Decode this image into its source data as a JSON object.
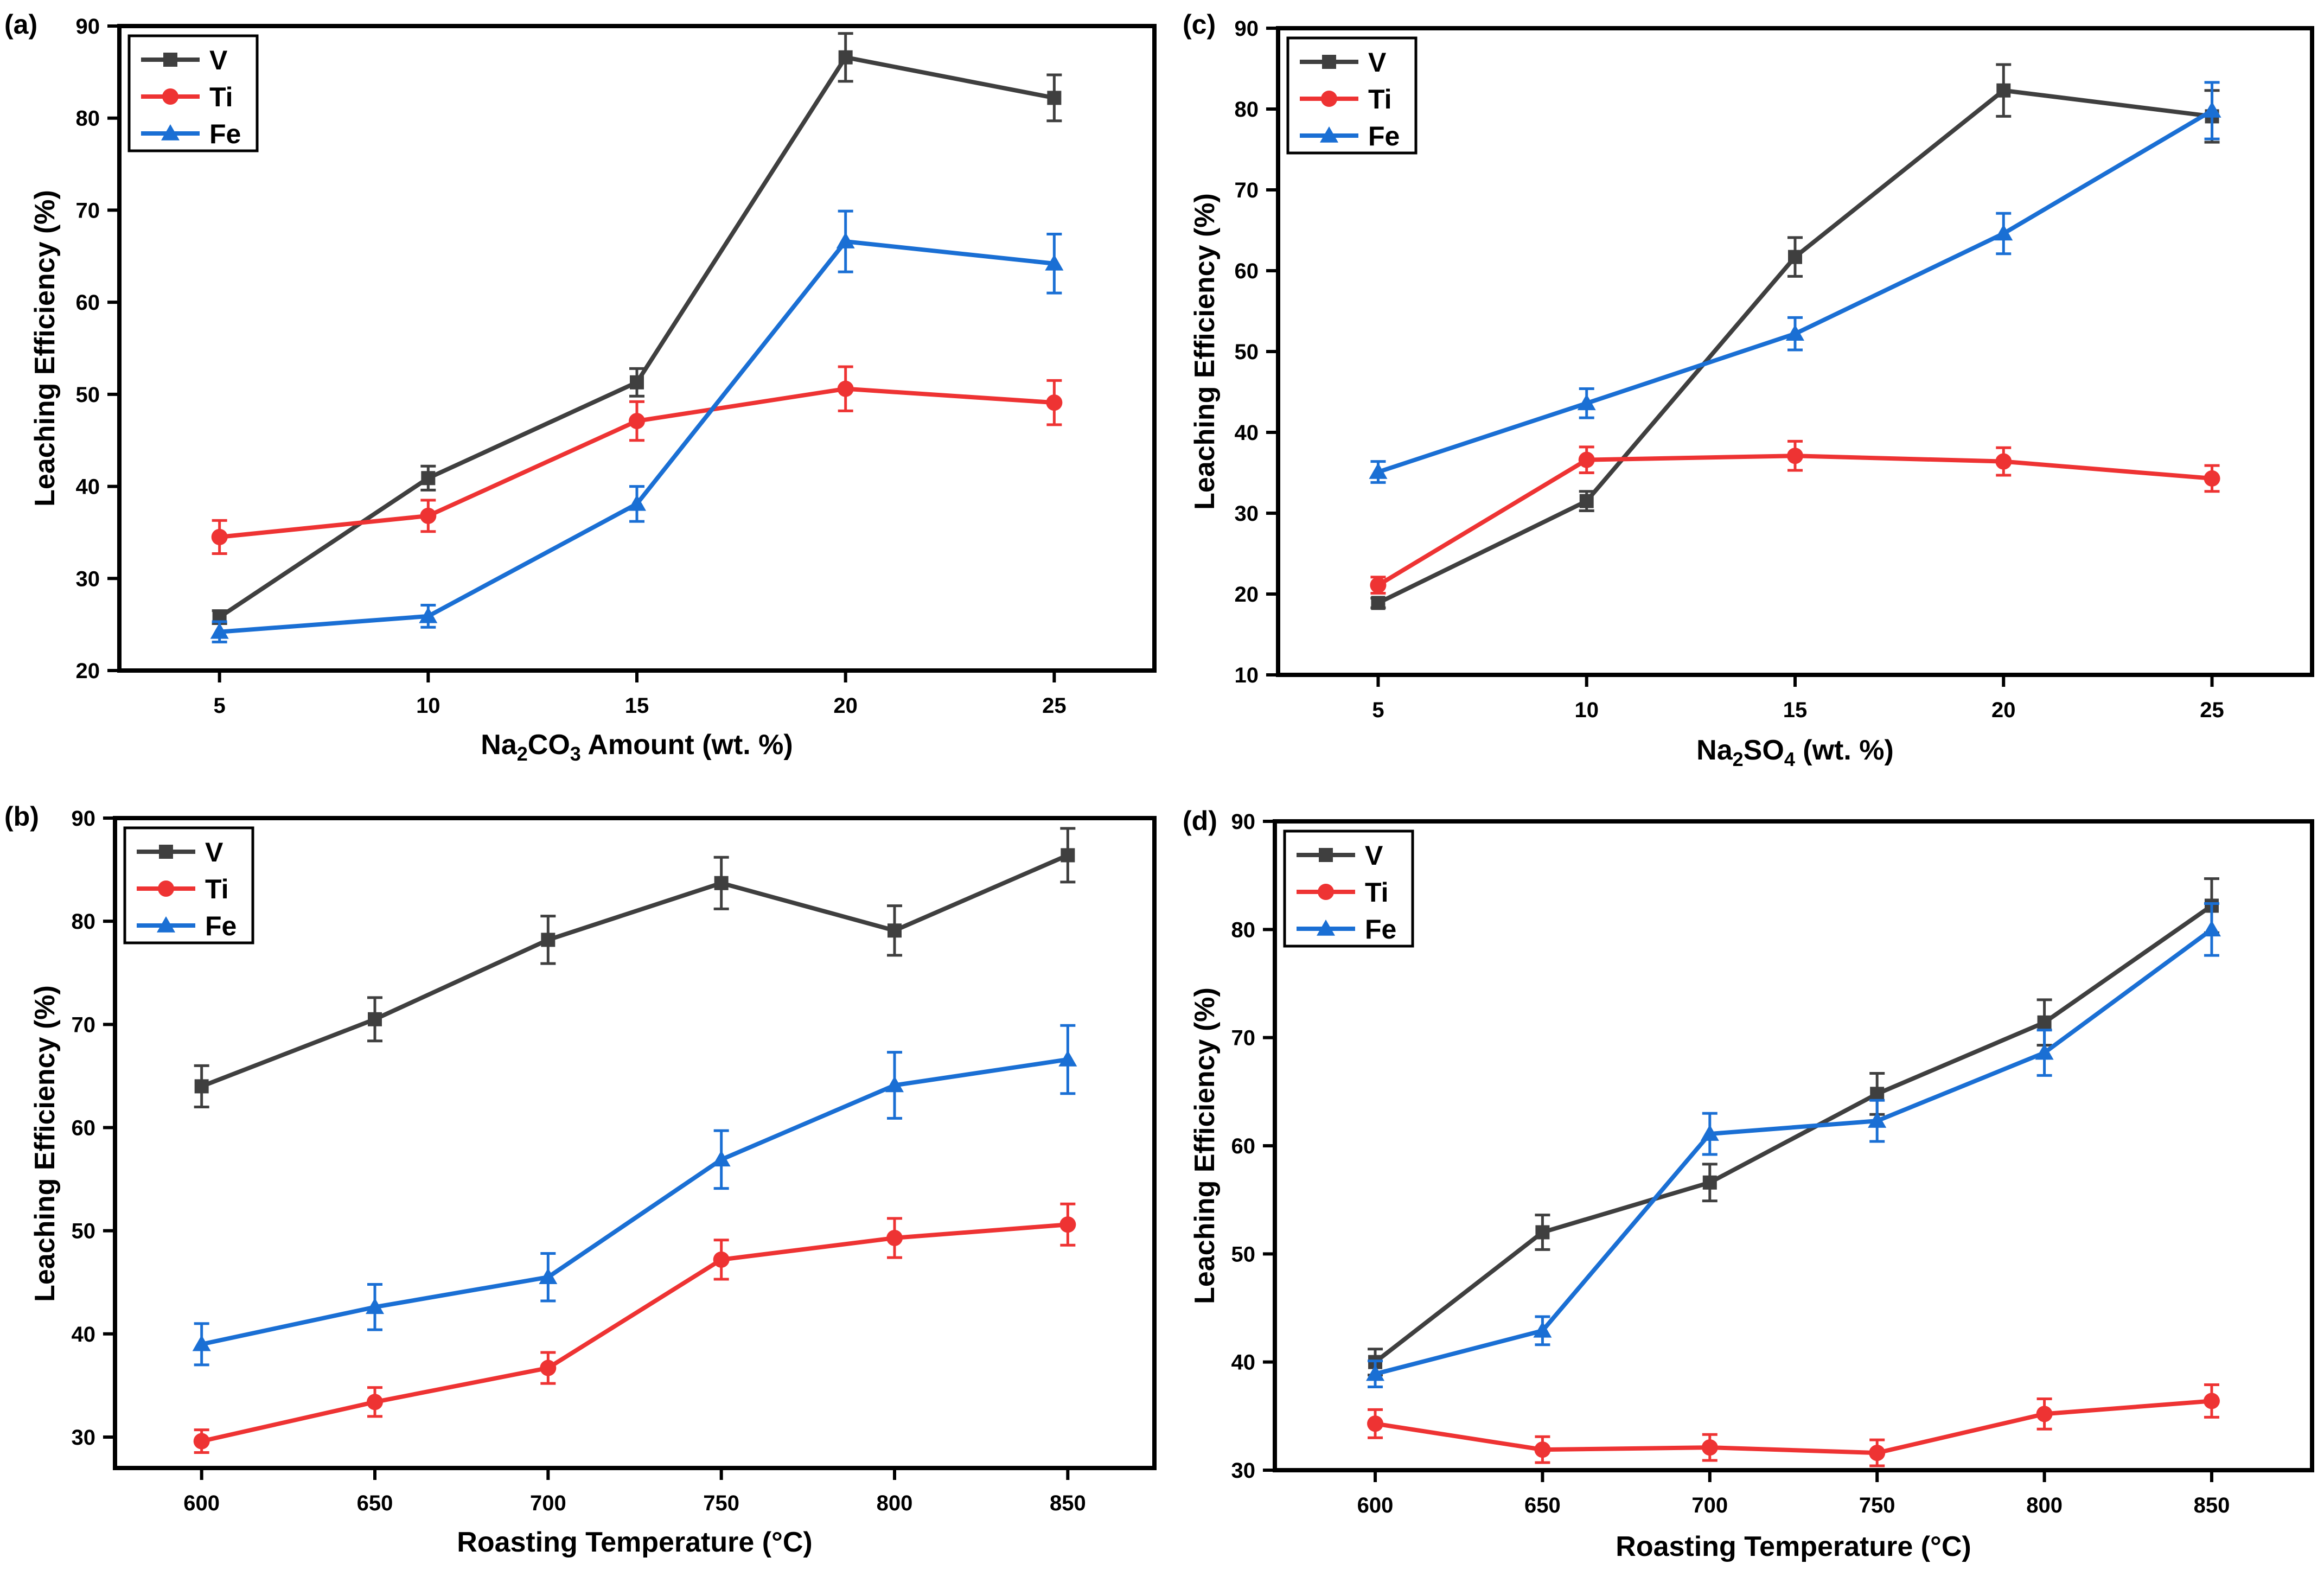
{
  "chart_data": [
    {
      "panel": "(a)",
      "type": "line",
      "xlabel_main": "Na",
      "xlabel_sub1": "2",
      "xlabel_mid": "CO",
      "xlabel_sub2": "3",
      "xlabel_tail": " Amount (wt. %)",
      "ylabel": "Leaching Efficiency (%)",
      "x": [
        5,
        10,
        15,
        20,
        25
      ],
      "xticks": [
        "5",
        "10",
        "15",
        "20",
        "25"
      ],
      "xlim": [
        2.6,
        27.4
      ],
      "yticks": [
        "20",
        "30",
        "40",
        "50",
        "60",
        "70",
        "80",
        "90"
      ],
      "ylim": [
        20,
        90
      ],
      "legend_position": "top-left",
      "series": [
        {
          "name": "V",
          "color": "#3f3f3f",
          "marker": "square",
          "values": [
            25.8,
            40.9,
            51.3,
            86.6,
            82.2
          ],
          "errors": [
            0.7,
            1.3,
            1.5,
            2.6,
            2.5
          ]
        },
        {
          "name": "Ti",
          "color": "#ee3333",
          "marker": "circle",
          "values": [
            34.5,
            36.8,
            47.1,
            50.6,
            49.1
          ],
          "errors": [
            1.8,
            1.7,
            2.1,
            2.4,
            2.4
          ]
        },
        {
          "name": "Fe",
          "color": "#1a6fd4",
          "marker": "triangle",
          "values": [
            24.2,
            25.9,
            38.1,
            66.6,
            64.2
          ],
          "errors": [
            1.1,
            1.2,
            1.9,
            3.3,
            3.2
          ]
        }
      ]
    },
    {
      "panel": "(c)",
      "type": "line",
      "xlabel_main": "Na",
      "xlabel_sub1": "2",
      "xlabel_mid": "SO",
      "xlabel_sub2": "4",
      "xlabel_tail": " (wt. %)",
      "ylabel": "Leaching Efficiency (%)",
      "x": [
        5,
        10,
        15,
        20,
        25
      ],
      "xticks": [
        "5",
        "10",
        "15",
        "20",
        "25"
      ],
      "xlim": [
        2.6,
        27.4
      ],
      "yticks": [
        "10",
        "20",
        "30",
        "40",
        "50",
        "60",
        "70",
        "80",
        "90"
      ],
      "ylim": [
        10,
        90
      ],
      "legend_position": "top-left",
      "series": [
        {
          "name": "V",
          "color": "#3f3f3f",
          "marker": "square",
          "values": [
            18.9,
            31.5,
            61.7,
            82.3,
            79.1
          ],
          "errors": [
            0.6,
            1.2,
            2.4,
            3.2,
            3.2
          ]
        },
        {
          "name": "Ti",
          "color": "#ee3333",
          "marker": "circle",
          "values": [
            21.1,
            36.6,
            37.1,
            36.4,
            34.3
          ],
          "errors": [
            1.0,
            1.6,
            1.8,
            1.7,
            1.6
          ]
        },
        {
          "name": "Fe",
          "color": "#1a6fd4",
          "marker": "triangle",
          "values": [
            35.1,
            43.6,
            52.2,
            64.6,
            79.8
          ],
          "errors": [
            1.3,
            1.8,
            2.0,
            2.5,
            3.5
          ]
        }
      ]
    },
    {
      "panel": "(b)",
      "type": "line",
      "xlabel": "Roasting Temperature (°C)",
      "ylabel": "Leaching Efficiency (%)",
      "x": [
        600,
        650,
        700,
        750,
        800,
        850
      ],
      "xticks": [
        "600",
        "650",
        "700",
        "750",
        "800",
        "850"
      ],
      "xlim": [
        575,
        875
      ],
      "yticks": [
        "30",
        "40",
        "50",
        "60",
        "70",
        "80",
        "90"
      ],
      "ylim": [
        27,
        90
      ],
      "legend_position": "top-left",
      "series": [
        {
          "name": "V",
          "color": "#3f3f3f",
          "marker": "square",
          "values": [
            64.0,
            70.5,
            78.2,
            83.7,
            79.1,
            86.4
          ],
          "errors": [
            2.0,
            2.1,
            2.3,
            2.5,
            2.4,
            2.6
          ]
        },
        {
          "name": "Ti",
          "color": "#ee3333",
          "marker": "circle",
          "values": [
            29.6,
            33.4,
            36.7,
            47.2,
            49.3,
            50.6
          ],
          "errors": [
            1.1,
            1.4,
            1.5,
            1.9,
            1.9,
            2.0
          ]
        },
        {
          "name": "Fe",
          "color": "#1a6fd4",
          "marker": "triangle",
          "values": [
            39.0,
            42.6,
            45.5,
            56.9,
            64.1,
            66.6
          ],
          "errors": [
            2.0,
            2.2,
            2.3,
            2.8,
            3.2,
            3.3
          ]
        }
      ]
    },
    {
      "panel": "(d)",
      "type": "line",
      "xlabel": "Roasting Temperature (°C)",
      "ylabel": "Leaching Efficiency (%)",
      "x": [
        600,
        650,
        700,
        750,
        800,
        850
      ],
      "xticks": [
        "600",
        "650",
        "700",
        "750",
        "800",
        "850"
      ],
      "xlim": [
        570,
        880
      ],
      "yticks": [
        "30",
        "40",
        "50",
        "60",
        "70",
        "80",
        "90"
      ],
      "ylim": [
        30,
        90
      ],
      "legend_position": "top-left",
      "series": [
        {
          "name": "V",
          "color": "#3f3f3f",
          "marker": "square",
          "values": [
            40.0,
            52.0,
            56.6,
            64.8,
            71.4,
            82.2
          ],
          "errors": [
            1.2,
            1.6,
            1.7,
            1.9,
            2.1,
            2.5
          ]
        },
        {
          "name": "Ti",
          "color": "#ee3333",
          "marker": "circle",
          "values": [
            34.3,
            31.9,
            32.1,
            31.6,
            35.2,
            36.4
          ],
          "errors": [
            1.3,
            1.2,
            1.2,
            1.2,
            1.4,
            1.5
          ]
        },
        {
          "name": "Fe",
          "color": "#1a6fd4",
          "marker": "triangle",
          "values": [
            38.9,
            42.9,
            61.1,
            62.3,
            68.6,
            80.0
          ],
          "errors": [
            1.2,
            1.3,
            1.9,
            1.9,
            2.1,
            2.4
          ]
        }
      ]
    }
  ]
}
